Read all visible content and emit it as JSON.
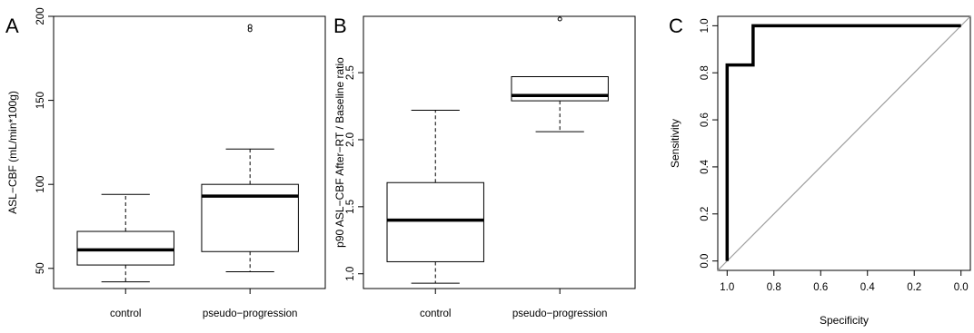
{
  "chart_data": [
    {
      "type": "boxplot",
      "panel_label": "A",
      "title": "",
      "xlabel": "",
      "ylabel": "ASL−CBF (mL/min*100g)",
      "ylim": [
        38,
        200
      ],
      "yticks": [
        50,
        100,
        150,
        200
      ],
      "categories": [
        "control",
        "pseudo−progression"
      ],
      "boxes": [
        {
          "category": "control",
          "whisker_low": 42,
          "q1": 52,
          "median": 61,
          "q3": 72,
          "whisker_high": 94,
          "outliers": []
        },
        {
          "category": "pseudo−progression",
          "whisker_low": 48,
          "q1": 60,
          "median": 93,
          "q3": 100,
          "whisker_high": 121,
          "outliers": [
            192,
            194
          ]
        }
      ]
    },
    {
      "type": "boxplot",
      "panel_label": "B",
      "title": "",
      "xlabel": "",
      "ylabel": "p90 ASL−CBF After−RT / Baseline ratio",
      "ylim": [
        0.89,
        2.92
      ],
      "yticks": [
        1.0,
        1.5,
        2.0,
        2.5
      ],
      "categories": [
        "control",
        "pseudo−progression"
      ],
      "boxes": [
        {
          "category": "control",
          "whisker_low": 0.93,
          "q1": 1.09,
          "median": 1.4,
          "q3": 1.68,
          "whisker_high": 2.22,
          "outliers": []
        },
        {
          "category": "pseudo−progression",
          "whisker_low": 2.06,
          "q1": 2.29,
          "median": 2.33,
          "q3": 2.47,
          "whisker_high": 2.47,
          "outliers": [
            2.9
          ]
        }
      ]
    },
    {
      "type": "line",
      "panel_label": "C",
      "title": "",
      "xlabel": "Specificity",
      "ylabel": "Sensitivity",
      "xlim": [
        1.04,
        -0.04
      ],
      "ylim": [
        -0.04,
        1.04
      ],
      "xticks": [
        1.0,
        0.8,
        0.6,
        0.4,
        0.2,
        0.0
      ],
      "yticks": [
        0.0,
        0.2,
        0.4,
        0.6,
        0.8,
        1.0
      ],
      "series": [
        {
          "specificity": [
            1.0,
            1.0,
            0.889,
            0.889,
            0.0
          ],
          "sensitivity": [
            0.0,
            0.833,
            0.833,
            1.0,
            1.0
          ],
          "color": "#000000"
        }
      ],
      "reference_line": {
        "specificity": [
          1.04,
          -0.04
        ],
        "sensitivity": [
          -0.04,
          1.04
        ],
        "color": "#9e9e9e"
      }
    }
  ]
}
